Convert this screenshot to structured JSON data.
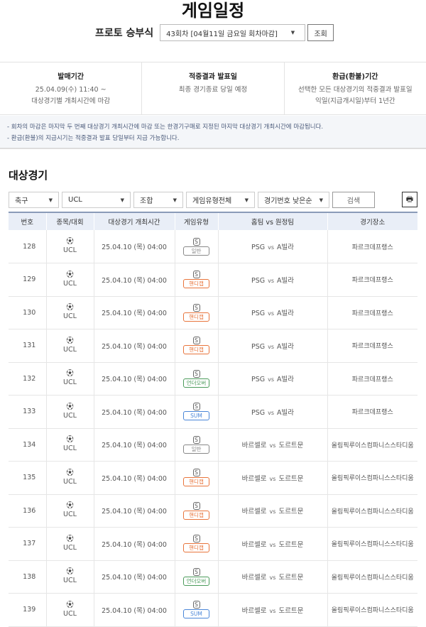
{
  "page_title": "게임일정",
  "round": {
    "label": "프로토 승부식",
    "selected": "43회차 [04월11일 금요일 회차마감]",
    "lookup": "조회"
  },
  "info": [
    {
      "heading": "발매기간",
      "lines": [
        "25.04.09(수) 11:40 ~",
        "대상경기별 개최시간에 마감"
      ]
    },
    {
      "heading": "적중결과 발표일",
      "lines": [
        "최종 경기종료 당일 예정"
      ]
    },
    {
      "heading": "환급(환불)기간",
      "lines": [
        "선택한 모든 대상경기의 적중결과 발표일",
        "익일(지급개시일)부터 1년간"
      ]
    }
  ],
  "notes": [
    "- 회차의 마감은 마지막 두 번째 대상경기 개최시간에 마감 또는 한경기구매로 지정된 마지막 대상경기 개최시간에 마감됩니다.",
    "- 환급(환불)의 지급시기는 적중결과 발표 당일부터 지급 가능합니다."
  ],
  "section_title": "대상경기",
  "filters": {
    "sport": "축구",
    "league": "UCL",
    "type": "조합",
    "game_type": "게임유형전체",
    "sort": "경기번호 낮은순",
    "search": "검색"
  },
  "badge_colors": {
    "일반": "#888888",
    "핸디캡": "#e8743b",
    "언더오버": "#4a9a5a",
    "SUM": "#4a86d8"
  },
  "table": {
    "headers": [
      "번호",
      "종목/대회",
      "대상경기 개최시간",
      "게임유형",
      "홈팀 vs 원정팀",
      "경기장소"
    ],
    "rows": [
      {
        "no": "128",
        "league": "UCL",
        "time": "25.04.10 (목) 04:00",
        "s": "S",
        "type": "일반",
        "home": "PSG",
        "vs": "vs",
        "away": "A빌라",
        "venue": "파르크데프랭스"
      },
      {
        "no": "129",
        "league": "UCL",
        "time": "25.04.10 (목) 04:00",
        "s": "S",
        "type": "핸디캡",
        "home": "PSG",
        "vs": "vs",
        "away": "A빌라",
        "venue": "파르크데프랭스"
      },
      {
        "no": "130",
        "league": "UCL",
        "time": "25.04.10 (목) 04:00",
        "s": "S",
        "type": "핸디캡",
        "home": "PSG",
        "vs": "vs",
        "away": "A빌라",
        "venue": "파르크데프랭스"
      },
      {
        "no": "131",
        "league": "UCL",
        "time": "25.04.10 (목) 04:00",
        "s": "S",
        "type": "핸디캡",
        "home": "PSG",
        "vs": "vs",
        "away": "A빌라",
        "venue": "파르크데프랭스"
      },
      {
        "no": "132",
        "league": "UCL",
        "time": "25.04.10 (목) 04:00",
        "s": "S",
        "type": "언더오버",
        "home": "PSG",
        "vs": "vs",
        "away": "A빌라",
        "venue": "파르크데프랭스"
      },
      {
        "no": "133",
        "league": "UCL",
        "time": "25.04.10 (목) 04:00",
        "s": "S",
        "type": "SUM",
        "home": "PSG",
        "vs": "vs",
        "away": "A빌라",
        "venue": "파르크데프랭스"
      },
      {
        "no": "134",
        "league": "UCL",
        "time": "25.04.10 (목) 04:00",
        "s": "S",
        "type": "일반",
        "home": "바르셀로",
        "vs": "vs",
        "away": "도르트문",
        "venue": "올림픽루이스컴파니스스타디움"
      },
      {
        "no": "135",
        "league": "UCL",
        "time": "25.04.10 (목) 04:00",
        "s": "S",
        "type": "핸디캡",
        "home": "바르셀로",
        "vs": "vs",
        "away": "도르트문",
        "venue": "올림픽루이스컴파니스스타디움"
      },
      {
        "no": "136",
        "league": "UCL",
        "time": "25.04.10 (목) 04:00",
        "s": "S",
        "type": "핸디캡",
        "home": "바르셀로",
        "vs": "vs",
        "away": "도르트문",
        "venue": "올림픽루이스컴파니스스타디움"
      },
      {
        "no": "137",
        "league": "UCL",
        "time": "25.04.10 (목) 04:00",
        "s": "S",
        "type": "핸디캡",
        "home": "바르셀로",
        "vs": "vs",
        "away": "도르트문",
        "venue": "올림픽루이스컴파니스스타디움"
      },
      {
        "no": "138",
        "league": "UCL",
        "time": "25.04.10 (목) 04:00",
        "s": "S",
        "type": "언더오버",
        "home": "바르셀로",
        "vs": "vs",
        "away": "도르트문",
        "venue": "올림픽루이스컴파니스스타디움"
      },
      {
        "no": "139",
        "league": "UCL",
        "time": "25.04.10 (목) 04:00",
        "s": "S",
        "type": "SUM",
        "home": "바르셀로",
        "vs": "vs",
        "away": "도르트문",
        "venue": "올림픽루이스컴파니스스타디움"
      }
    ]
  }
}
